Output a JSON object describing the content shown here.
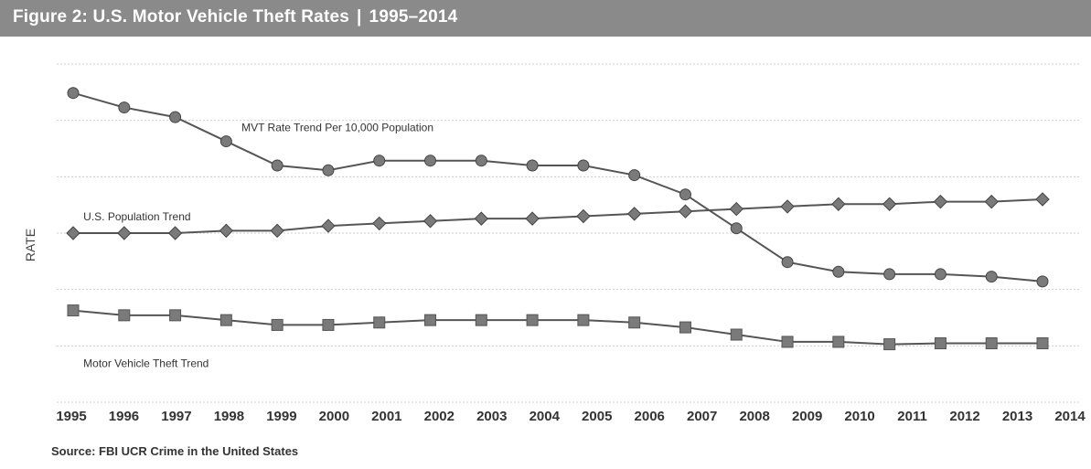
{
  "header": {
    "title": "Figure 2: U.S. Motor Vehicle Theft Rates",
    "separator": "|",
    "years": "1995–2014"
  },
  "source": "Source: FBI UCR Crime in the United States",
  "colors": {
    "banner": "#8a8a8a",
    "line": "#555555",
    "marker": "#7a7a7a",
    "grid": "#cfcfcf"
  },
  "chart_data": {
    "type": "line",
    "title": "",
    "xlabel": "",
    "ylabel": "RATE",
    "grid": true,
    "x": [
      "1995",
      "1996",
      "1997",
      "1998",
      "1999",
      "2000",
      "2001",
      "2002",
      "2003",
      "2004",
      "2005",
      "2006",
      "2007",
      "2008",
      "2009",
      "2010",
      "2011",
      "2012",
      "2013",
      "2014"
    ],
    "ylim": [
      0,
      7
    ],
    "y_ticks_labeled": false,
    "series": [
      {
        "name": "MVT Rate Trend Per 10,000 Population",
        "marker": "circle",
        "values": [
          6.4,
          6.1,
          5.9,
          5.4,
          4.9,
          4.8,
          5.0,
          5.0,
          5.0,
          4.9,
          4.9,
          4.7,
          4.3,
          3.6,
          2.9,
          2.7,
          2.65,
          2.65,
          2.6,
          2.5
        ]
      },
      {
        "name": "U.S. Population Trend",
        "marker": "diamond",
        "values": [
          3.5,
          3.5,
          3.5,
          3.55,
          3.55,
          3.65,
          3.7,
          3.75,
          3.8,
          3.8,
          3.85,
          3.9,
          3.95,
          4.0,
          4.05,
          4.1,
          4.1,
          4.15,
          4.15,
          4.2
        ]
      },
      {
        "name": "Motor Vehicle Theft Trend",
        "marker": "square",
        "values": [
          1.9,
          1.8,
          1.8,
          1.7,
          1.6,
          1.6,
          1.65,
          1.7,
          1.7,
          1.7,
          1.7,
          1.65,
          1.55,
          1.4,
          1.25,
          1.25,
          1.2,
          1.22,
          1.22,
          1.22
        ]
      }
    ]
  }
}
